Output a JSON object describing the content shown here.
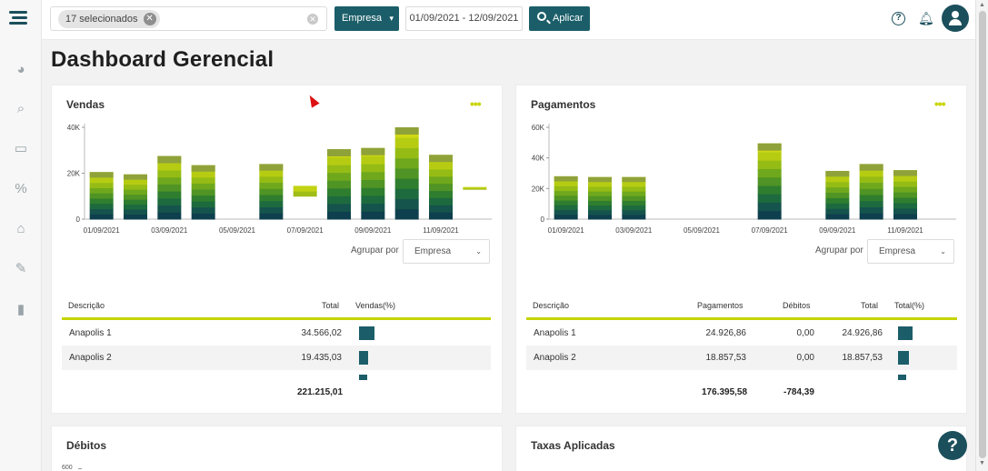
{
  "filters": {
    "chip_label": "17 selecionados",
    "entity_select": "Empresa",
    "date_range": "01/09/2021 - 12/09/2021",
    "apply_label": "Aplicar"
  },
  "page_title": "Dashboard Gerencial",
  "colors": {
    "primary": "#1b5e69",
    "accent": "#c6d400",
    "dark": "#1b4f5c"
  },
  "sidebar_icons": [
    "pie-chart-icon",
    "search-chart-icon",
    "money-icon",
    "percent-icon",
    "bank-icon",
    "pencil-icon",
    "file-upload-icon"
  ],
  "vendas": {
    "title": "Vendas",
    "group_label": "Agrupar por",
    "group_value": "Empresa",
    "headers": {
      "desc": "Descrição",
      "total": "Total",
      "pct": "Vendas(%)"
    },
    "rows": [
      {
        "desc": "Anapolis 1",
        "total": "34.566,02",
        "pct": 15.6
      },
      {
        "desc": "Anapolis 2",
        "total": "19.435,03",
        "pct": 8.8
      }
    ],
    "grand_total": "221.215,01"
  },
  "pagamentos": {
    "title": "Pagamentos",
    "group_label": "Agrupar por",
    "group_value": "Empresa",
    "headers": {
      "desc": "Descrição",
      "pag": "Pagamentos",
      "deb": "Débitos",
      "total": "Total",
      "pct": "Total(%)"
    },
    "rows": [
      {
        "desc": "Anapolis 1",
        "pag": "24.926,86",
        "deb": "0,00",
        "total": "24.926,86",
        "pct": 14.1
      },
      {
        "desc": "Anapolis 2",
        "pag": "18.857,53",
        "deb": "0,00",
        "total": "18.857,53",
        "pct": 10.7
      }
    ],
    "total_pag": "176.395,58",
    "total_deb": "-784,39"
  },
  "debitos": {
    "title": "Débitos",
    "ytick": "600"
  },
  "taxas": {
    "title": "Taxas Aplicadas"
  },
  "chart_data": [
    {
      "type": "bar",
      "title": "Vendas",
      "stacked": true,
      "ylim": [
        0,
        40000
      ],
      "yticks": [
        "0",
        "20K",
        "40K"
      ],
      "xticks": [
        "01/09/2021",
        "03/09/2021",
        "05/09/2021",
        "07/09/2021",
        "09/09/2021",
        "11/09/2021"
      ],
      "categories": [
        "01/09",
        "02/09",
        "03/09",
        "04/09",
        "05/09",
        "06/09",
        "07/09",
        "08/09",
        "09/09",
        "10/09",
        "11/09",
        "12/09"
      ],
      "values": [
        20500,
        19500,
        27500,
        23500,
        0,
        24000,
        14500,
        30500,
        31000,
        40000,
        28000,
        14000
      ],
      "floating_min": [
        0,
        0,
        0,
        0,
        0,
        0,
        10000,
        0,
        0,
        0,
        0,
        13000
      ]
    },
    {
      "type": "bar",
      "title": "Pagamentos",
      "stacked": true,
      "ylim": [
        0,
        60000
      ],
      "yticks": [
        "0",
        "20K",
        "40K",
        "60K"
      ],
      "xticks": [
        "01/09/2021",
        "03/09/2021",
        "05/09/2021",
        "07/09/2021",
        "09/09/2021",
        "11/09/2021"
      ],
      "categories": [
        "01/09",
        "02/09",
        "03/09",
        "04/09",
        "05/09",
        "06/09",
        "07/09",
        "08/09",
        "09/09",
        "10/09",
        "11/09",
        "12/09"
      ],
      "values": [
        28000,
        27500,
        27500,
        0,
        0,
        0,
        49500,
        0,
        31500,
        36000,
        32000,
        0
      ]
    }
  ]
}
